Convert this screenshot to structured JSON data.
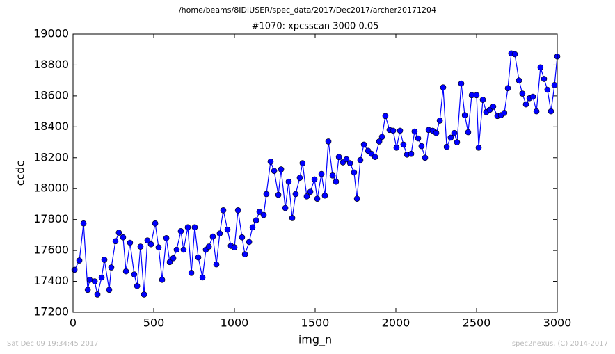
{
  "chart_data": {
    "type": "line",
    "supertitle": "/home/beams/8IDIUSER/spec_data/2017/Dec2017/archer20171204",
    "title": "#1070: xpcsscan 3000 0.05",
    "x_label": "img_n",
    "y_label": "ccdc",
    "footer_left": "Sat Dec 09 19:34:45 2017",
    "footer_right": "spec2nexus, (C) 2014-2017",
    "x": [
      9,
      39,
      65,
      91,
      103,
      134,
      151,
      177,
      194,
      224,
      237,
      263,
      284,
      310,
      328,
      353,
      379,
      397,
      418,
      440,
      461,
      483,
      509,
      530,
      552,
      578,
      599,
      621,
      642,
      668,
      685,
      711,
      733,
      754,
      776,
      802,
      823,
      841,
      866,
      888,
      909,
      931,
      957,
      978,
      1000,
      1022,
      1047,
      1065,
      1091,
      1112,
      1134,
      1155,
      1181,
      1198,
      1224,
      1246,
      1272,
      1289,
      1315,
      1336,
      1358,
      1379,
      1405,
      1422,
      1448,
      1470,
      1496,
      1513,
      1539,
      1560,
      1582,
      1608,
      1629,
      1647,
      1672,
      1694,
      1716,
      1741,
      1759,
      1780,
      1802,
      1828,
      1849,
      1871,
      1897,
      1914,
      1935,
      1961,
      1983,
      2004,
      2026,
      2047,
      2069,
      2095,
      2116,
      2138,
      2159,
      2181,
      2203,
      2228,
      2250,
      2272,
      2293,
      2315,
      2340,
      2362,
      2379,
      2405,
      2427,
      2448,
      2470,
      2500,
      2513,
      2539,
      2560,
      2582,
      2603,
      2629,
      2651,
      2672,
      2694,
      2715,
      2737,
      2763,
      2784,
      2806,
      2828,
      2849,
      2871,
      2896,
      2918,
      2939,
      2961,
      2983,
      3000
    ],
    "series": [
      {
        "name": "ccdc",
        "color": "#0000ff",
        "values": [
          17475,
          17535,
          17775,
          17345,
          17410,
          17400,
          17315,
          17425,
          17540,
          17345,
          17490,
          17660,
          17715,
          17685,
          17465,
          17650,
          17445,
          17370,
          17625,
          17315,
          17665,
          17640,
          17775,
          17620,
          17410,
          17680,
          17525,
          17550,
          17605,
          17725,
          17605,
          17750,
          17455,
          17750,
          17555,
          17425,
          17605,
          17625,
          17690,
          17510,
          17710,
          17860,
          17735,
          17630,
          17620,
          17860,
          17685,
          17575,
          17655,
          17750,
          17795,
          17850,
          17830,
          17965,
          18175,
          18115,
          17960,
          18125,
          17875,
          18045,
          17810,
          17965,
          18070,
          18165,
          17950,
          17980,
          18060,
          17935,
          18095,
          17955,
          18305,
          18085,
          18045,
          18205,
          18170,
          18190,
          18165,
          18105,
          17935,
          18185,
          18285,
          18245,
          18225,
          18205,
          18305,
          18335,
          18470,
          18380,
          18375,
          18265,
          18375,
          18285,
          18220,
          18225,
          18370,
          18325,
          18275,
          18200,
          18380,
          18375,
          18360,
          18440,
          18655,
          18270,
          18330,
          18360,
          18300,
          18680,
          18475,
          18365,
          18605,
          18605,
          18265,
          18575,
          18495,
          18510,
          18530,
          18470,
          18475,
          18490,
          18650,
          18875,
          18870,
          18700,
          18615,
          18545,
          18585,
          18595,
          18500,
          18785,
          18710,
          18640,
          18500,
          18670,
          18855
        ]
      }
    ],
    "xlim": [
      0,
      3000
    ],
    "xticks": [
      0,
      500,
      1000,
      1500,
      2000,
      2500,
      3000
    ],
    "ylim": [
      17200,
      19000
    ],
    "yticks": [
      17200,
      17400,
      17600,
      17800,
      18000,
      18200,
      18400,
      18600,
      18800,
      19000
    ]
  }
}
